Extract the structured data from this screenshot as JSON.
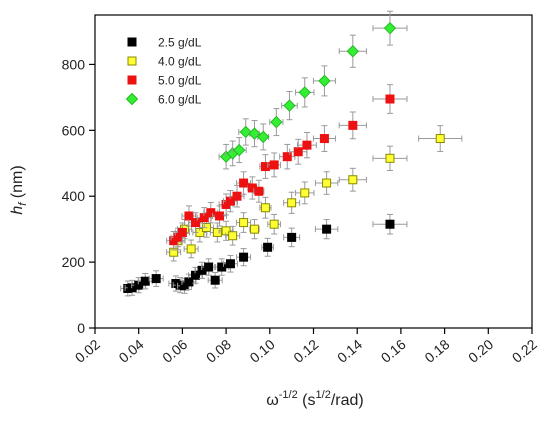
{
  "chart_data": {
    "type": "scatter",
    "title": "",
    "xlabel_base": "ω",
    "xlabel_exp": "-1/2",
    "xlabel_open": " (s",
    "xlabel_unit_exp": "1/2",
    "xlabel_close": "/rad)",
    "ylabel_base": "h",
    "ylabel_sub": "f",
    "ylabel_unit": " (nm)",
    "xlim": [
      0.02,
      0.22
    ],
    "ylim": [
      0,
      950
    ],
    "x_ticks": [
      "0.02",
      "0.04",
      "0.06",
      "0.08",
      "0.10",
      "0.12",
      "0.14",
      "0.16",
      "0.18",
      "0.20",
      "0.22"
    ],
    "y_ticks": [
      "0",
      "200",
      "400",
      "600",
      "800"
    ],
    "grid": false,
    "legend_position": "top-left",
    "series": [
      {
        "name": "2.5 g/dL",
        "color": "#000000",
        "fill": "#000000",
        "marker": "square",
        "points": [
          {
            "x": 0.035,
            "y": 120
          },
          {
            "x": 0.037,
            "y": 122
          },
          {
            "x": 0.04,
            "y": 130
          },
          {
            "x": 0.043,
            "y": 142
          },
          {
            "x": 0.048,
            "y": 150
          },
          {
            "x": 0.057,
            "y": 135
          },
          {
            "x": 0.059,
            "y": 130
          },
          {
            "x": 0.061,
            "y": 128
          },
          {
            "x": 0.063,
            "y": 140
          },
          {
            "x": 0.066,
            "y": 160
          },
          {
            "x": 0.069,
            "y": 175
          },
          {
            "x": 0.072,
            "y": 185
          },
          {
            "x": 0.075,
            "y": 145
          },
          {
            "x": 0.078,
            "y": 185
          },
          {
            "x": 0.082,
            "y": 195
          },
          {
            "x": 0.088,
            "y": 215
          },
          {
            "x": 0.099,
            "y": 245
          },
          {
            "x": 0.11,
            "y": 275
          },
          {
            "x": 0.126,
            "y": 300
          },
          {
            "x": 0.155,
            "y": 315
          }
        ]
      },
      {
        "name": "4.0 g/dL",
        "color": "#8a8a00",
        "fill": "#ffff33",
        "marker": "square",
        "points": [
          {
            "x": 0.056,
            "y": 230
          },
          {
            "x": 0.058,
            "y": 265
          },
          {
            "x": 0.061,
            "y": 300
          },
          {
            "x": 0.064,
            "y": 240
          },
          {
            "x": 0.068,
            "y": 290
          },
          {
            "x": 0.071,
            "y": 305
          },
          {
            "x": 0.076,
            "y": 290
          },
          {
            "x": 0.08,
            "y": 295
          },
          {
            "x": 0.083,
            "y": 280
          },
          {
            "x": 0.088,
            "y": 320
          },
          {
            "x": 0.093,
            "y": 300
          },
          {
            "x": 0.098,
            "y": 365
          },
          {
            "x": 0.102,
            "y": 315
          },
          {
            "x": 0.11,
            "y": 380
          },
          {
            "x": 0.116,
            "y": 410
          },
          {
            "x": 0.126,
            "y": 440
          },
          {
            "x": 0.138,
            "y": 450
          },
          {
            "x": 0.155,
            "y": 515
          },
          {
            "x": 0.178,
            "y": 575
          }
        ]
      },
      {
        "name": "5.0 g/dL",
        "color": "#ee1111",
        "fill": "#ee1111",
        "marker": "square",
        "points": [
          {
            "x": 0.056,
            "y": 265
          },
          {
            "x": 0.058,
            "y": 275
          },
          {
            "x": 0.06,
            "y": 290
          },
          {
            "x": 0.063,
            "y": 340
          },
          {
            "x": 0.066,
            "y": 320
          },
          {
            "x": 0.07,
            "y": 335
          },
          {
            "x": 0.073,
            "y": 350
          },
          {
            "x": 0.077,
            "y": 340
          },
          {
            "x": 0.08,
            "y": 375
          },
          {
            "x": 0.082,
            "y": 385
          },
          {
            "x": 0.085,
            "y": 400
          },
          {
            "x": 0.088,
            "y": 440
          },
          {
            "x": 0.092,
            "y": 425
          },
          {
            "x": 0.095,
            "y": 415
          },
          {
            "x": 0.098,
            "y": 490
          },
          {
            "x": 0.102,
            "y": 495
          },
          {
            "x": 0.108,
            "y": 520
          },
          {
            "x": 0.113,
            "y": 535
          },
          {
            "x": 0.117,
            "y": 555
          },
          {
            "x": 0.125,
            "y": 575
          },
          {
            "x": 0.138,
            "y": 615
          },
          {
            "x": 0.155,
            "y": 695
          }
        ]
      },
      {
        "name": "6.0 g/dL",
        "color": "#22bb22",
        "fill": "#33ee33",
        "marker": "diamond",
        "points": [
          {
            "x": 0.08,
            "y": 520
          },
          {
            "x": 0.083,
            "y": 530
          },
          {
            "x": 0.086,
            "y": 540
          },
          {
            "x": 0.089,
            "y": 595
          },
          {
            "x": 0.093,
            "y": 590
          },
          {
            "x": 0.097,
            "y": 580
          },
          {
            "x": 0.103,
            "y": 625
          },
          {
            "x": 0.109,
            "y": 675
          },
          {
            "x": 0.116,
            "y": 715
          },
          {
            "x": 0.125,
            "y": 750
          },
          {
            "x": 0.138,
            "y": 840
          },
          {
            "x": 0.155,
            "y": 910
          }
        ]
      }
    ]
  }
}
